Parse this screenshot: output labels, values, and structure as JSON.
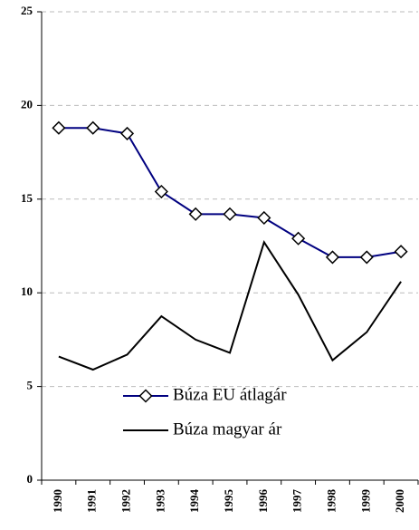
{
  "chart_data": {
    "type": "line",
    "categories": [
      "1990",
      "1991",
      "1992",
      "1993",
      "1994",
      "1995",
      "1996",
      "1997",
      "1998",
      "1999",
      "2000"
    ],
    "series": [
      {
        "name": "Búza EU átlagár",
        "color": "#000080",
        "marker": "diamond",
        "values": [
          18.8,
          18.8,
          18.5,
          15.4,
          14.2,
          14.2,
          14.0,
          12.9,
          11.9,
          11.9,
          12.2
        ]
      },
      {
        "name": "Búza magyar ár",
        "color": "#000000",
        "values": [
          6.6,
          5.9,
          6.7,
          8.75,
          7.5,
          6.8,
          12.7,
          9.9,
          6.4,
          7.9,
          10.6
        ]
      }
    ],
    "ylim": [
      0,
      25
    ],
    "yticks": [
      0,
      5,
      10,
      15,
      20,
      25
    ],
    "grid": true,
    "legend": "lower left"
  }
}
